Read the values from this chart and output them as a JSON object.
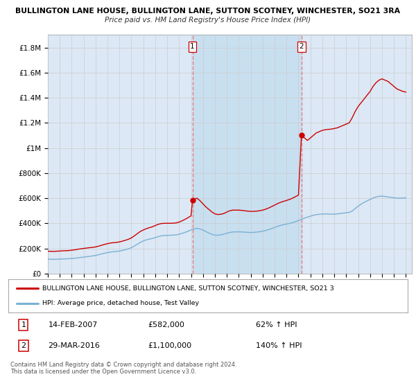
{
  "title_line1": "BULLINGTON LANE HOUSE, BULLINGTON LANE, SUTTON SCOTNEY, WINCHESTER, SO21 3RA",
  "title_line2": "Price paid vs. HM Land Registry's House Price Index (HPI)",
  "xlim_start": 1995.0,
  "xlim_end": 2025.5,
  "ylim_min": 0,
  "ylim_max": 1900000,
  "yticks": [
    0,
    200000,
    400000,
    600000,
    800000,
    1000000,
    1200000,
    1400000,
    1600000,
    1800000
  ],
  "ytick_labels": [
    "£0",
    "£200K",
    "£400K",
    "£600K",
    "£800K",
    "£1M",
    "£1.2M",
    "£1.4M",
    "£1.6M",
    "£1.8M"
  ],
  "xtick_years": [
    1995,
    1996,
    1997,
    1998,
    1999,
    2000,
    2001,
    2002,
    2003,
    2004,
    2005,
    2006,
    2007,
    2008,
    2009,
    2010,
    2011,
    2012,
    2013,
    2014,
    2015,
    2016,
    2017,
    2018,
    2019,
    2020,
    2021,
    2022,
    2023,
    2024,
    2025
  ],
  "red_line_color": "#cc0000",
  "blue_line_color": "#7ab0d4",
  "vline_color": "#e08080",
  "grid_color": "#cccccc",
  "background_color": "#ffffff",
  "plot_bg_color": "#dce8f5",
  "highlight_bg_color": "#c8dff0",
  "sale1_x": 2007.117,
  "sale1_y": 582000,
  "sale2_x": 2016.247,
  "sale2_y": 1100000,
  "legend_red_label": "BULLINGTON LANE HOUSE, BULLINGTON LANE, SUTTON SCOTNEY, WINCHESTER, SO21 3",
  "legend_blue_label": "HPI: Average price, detached house, Test Valley",
  "annotation1_date": "14-FEB-2007",
  "annotation1_price": "£582,000",
  "annotation1_hpi": "62% ↑ HPI",
  "annotation2_date": "29-MAR-2016",
  "annotation2_price": "£1,100,000",
  "annotation2_hpi": "140% ↑ HPI",
  "footer": "Contains HM Land Registry data © Crown copyright and database right 2024.\nThis data is licensed under the Open Government Licence v3.0.",
  "red_hpi_data": [
    [
      1995.0,
      178000
    ],
    [
      1995.25,
      177000
    ],
    [
      1995.5,
      176000
    ],
    [
      1995.75,
      178000
    ],
    [
      1996.0,
      179000
    ],
    [
      1996.25,
      181000
    ],
    [
      1996.5,
      182000
    ],
    [
      1996.75,
      183000
    ],
    [
      1997.0,
      186000
    ],
    [
      1997.25,
      189000
    ],
    [
      1997.5,
      193000
    ],
    [
      1997.75,
      197000
    ],
    [
      1998.0,
      200000
    ],
    [
      1998.25,
      203000
    ],
    [
      1998.5,
      206000
    ],
    [
      1998.75,
      208000
    ],
    [
      1999.0,
      212000
    ],
    [
      1999.25,
      218000
    ],
    [
      1999.5,
      225000
    ],
    [
      1999.75,
      232000
    ],
    [
      2000.0,
      238000
    ],
    [
      2000.25,
      243000
    ],
    [
      2000.5,
      246000
    ],
    [
      2000.75,
      248000
    ],
    [
      2001.0,
      252000
    ],
    [
      2001.25,
      258000
    ],
    [
      2001.5,
      265000
    ],
    [
      2001.75,
      273000
    ],
    [
      2002.0,
      284000
    ],
    [
      2002.25,
      300000
    ],
    [
      2002.5,
      318000
    ],
    [
      2002.75,
      335000
    ],
    [
      2003.0,
      347000
    ],
    [
      2003.25,
      357000
    ],
    [
      2003.5,
      365000
    ],
    [
      2003.75,
      372000
    ],
    [
      2004.0,
      382000
    ],
    [
      2004.25,
      392000
    ],
    [
      2004.5,
      398000
    ],
    [
      2004.75,
      400000
    ],
    [
      2005.0,
      400000
    ],
    [
      2005.25,
      400000
    ],
    [
      2005.5,
      401000
    ],
    [
      2005.75,
      403000
    ],
    [
      2006.0,
      410000
    ],
    [
      2006.25,
      420000
    ],
    [
      2006.5,
      432000
    ],
    [
      2006.75,
      445000
    ],
    [
      2007.0,
      460000
    ],
    [
      2007.117,
      582000
    ],
    [
      2007.25,
      590000
    ],
    [
      2007.5,
      600000
    ],
    [
      2007.75,
      580000
    ],
    [
      2008.0,
      555000
    ],
    [
      2008.25,
      530000
    ],
    [
      2008.5,
      510000
    ],
    [
      2008.75,
      490000
    ],
    [
      2009.0,
      475000
    ],
    [
      2009.25,
      470000
    ],
    [
      2009.5,
      472000
    ],
    [
      2009.75,
      478000
    ],
    [
      2010.0,
      490000
    ],
    [
      2010.25,
      500000
    ],
    [
      2010.5,
      505000
    ],
    [
      2010.75,
      505000
    ],
    [
      2011.0,
      505000
    ],
    [
      2011.25,
      503000
    ],
    [
      2011.5,
      500000
    ],
    [
      2011.75,
      497000
    ],
    [
      2012.0,
      495000
    ],
    [
      2012.25,
      495000
    ],
    [
      2012.5,
      497000
    ],
    [
      2012.75,
      500000
    ],
    [
      2013.0,
      505000
    ],
    [
      2013.25,
      512000
    ],
    [
      2013.5,
      522000
    ],
    [
      2013.75,
      533000
    ],
    [
      2014.0,
      545000
    ],
    [
      2014.25,
      557000
    ],
    [
      2014.5,
      567000
    ],
    [
      2014.75,
      575000
    ],
    [
      2015.0,
      582000
    ],
    [
      2015.25,
      590000
    ],
    [
      2015.5,
      600000
    ],
    [
      2015.75,
      612000
    ],
    [
      2016.0,
      625000
    ],
    [
      2016.247,
      1100000
    ],
    [
      2016.5,
      1080000
    ],
    [
      2016.75,
      1060000
    ],
    [
      2017.0,
      1080000
    ],
    [
      2017.25,
      1100000
    ],
    [
      2017.5,
      1120000
    ],
    [
      2017.75,
      1130000
    ],
    [
      2018.0,
      1140000
    ],
    [
      2018.25,
      1145000
    ],
    [
      2018.5,
      1148000
    ],
    [
      2018.75,
      1150000
    ],
    [
      2019.0,
      1155000
    ],
    [
      2019.25,
      1160000
    ],
    [
      2019.5,
      1170000
    ],
    [
      2019.75,
      1180000
    ],
    [
      2020.0,
      1190000
    ],
    [
      2020.25,
      1200000
    ],
    [
      2020.5,
      1240000
    ],
    [
      2020.75,
      1290000
    ],
    [
      2021.0,
      1330000
    ],
    [
      2021.25,
      1360000
    ],
    [
      2021.5,
      1390000
    ],
    [
      2021.75,
      1420000
    ],
    [
      2022.0,
      1450000
    ],
    [
      2022.25,
      1490000
    ],
    [
      2022.5,
      1520000
    ],
    [
      2022.75,
      1540000
    ],
    [
      2023.0,
      1550000
    ],
    [
      2023.25,
      1540000
    ],
    [
      2023.5,
      1530000
    ],
    [
      2023.75,
      1510000
    ],
    [
      2024.0,
      1490000
    ],
    [
      2024.25,
      1470000
    ],
    [
      2024.5,
      1460000
    ],
    [
      2024.75,
      1450000
    ],
    [
      2025.0,
      1445000
    ]
  ],
  "blue_hpi_data": [
    [
      1995.0,
      115000
    ],
    [
      1995.25,
      114000
    ],
    [
      1995.5,
      113000
    ],
    [
      1995.75,
      114000
    ],
    [
      1996.0,
      115000
    ],
    [
      1996.25,
      116000
    ],
    [
      1996.5,
      117000
    ],
    [
      1996.75,
      118000
    ],
    [
      1997.0,
      120000
    ],
    [
      1997.25,
      122000
    ],
    [
      1997.5,
      125000
    ],
    [
      1997.75,
      128000
    ],
    [
      1998.0,
      131000
    ],
    [
      1998.25,
      134000
    ],
    [
      1998.5,
      137000
    ],
    [
      1998.75,
      140000
    ],
    [
      1999.0,
      144000
    ],
    [
      1999.25,
      150000
    ],
    [
      1999.5,
      156000
    ],
    [
      1999.75,
      162000
    ],
    [
      2000.0,
      167000
    ],
    [
      2000.25,
      171000
    ],
    [
      2000.5,
      174000
    ],
    [
      2000.75,
      176000
    ],
    [
      2001.0,
      179000
    ],
    [
      2001.25,
      184000
    ],
    [
      2001.5,
      190000
    ],
    [
      2001.75,
      197000
    ],
    [
      2002.0,
      206000
    ],
    [
      2002.25,
      219000
    ],
    [
      2002.5,
      234000
    ],
    [
      2002.75,
      248000
    ],
    [
      2003.0,
      260000
    ],
    [
      2003.25,
      268000
    ],
    [
      2003.5,
      274000
    ],
    [
      2003.75,
      279000
    ],
    [
      2004.0,
      286000
    ],
    [
      2004.25,
      294000
    ],
    [
      2004.5,
      300000
    ],
    [
      2004.75,
      303000
    ],
    [
      2005.0,
      304000
    ],
    [
      2005.25,
      305000
    ],
    [
      2005.5,
      306000
    ],
    [
      2005.75,
      308000
    ],
    [
      2006.0,
      313000
    ],
    [
      2006.25,
      320000
    ],
    [
      2006.5,
      328000
    ],
    [
      2006.75,
      337000
    ],
    [
      2007.0,
      347000
    ],
    [
      2007.25,
      355000
    ],
    [
      2007.5,
      360000
    ],
    [
      2007.75,
      355000
    ],
    [
      2008.0,
      346000
    ],
    [
      2008.25,
      334000
    ],
    [
      2008.5,
      322000
    ],
    [
      2008.75,
      312000
    ],
    [
      2009.0,
      306000
    ],
    [
      2009.25,
      305000
    ],
    [
      2009.5,
      308000
    ],
    [
      2009.75,
      314000
    ],
    [
      2010.0,
      321000
    ],
    [
      2010.25,
      327000
    ],
    [
      2010.5,
      331000
    ],
    [
      2010.75,
      332000
    ],
    [
      2011.0,
      332000
    ],
    [
      2011.25,
      331000
    ],
    [
      2011.5,
      330000
    ],
    [
      2011.75,
      328000
    ],
    [
      2012.0,
      327000
    ],
    [
      2012.25,
      328000
    ],
    [
      2012.5,
      330000
    ],
    [
      2012.75,
      333000
    ],
    [
      2013.0,
      337000
    ],
    [
      2013.25,
      343000
    ],
    [
      2013.5,
      350000
    ],
    [
      2013.75,
      358000
    ],
    [
      2014.0,
      367000
    ],
    [
      2014.25,
      376000
    ],
    [
      2014.5,
      383000
    ],
    [
      2014.75,
      389000
    ],
    [
      2015.0,
      394000
    ],
    [
      2015.25,
      399000
    ],
    [
      2015.5,
      405000
    ],
    [
      2015.75,
      413000
    ],
    [
      2016.0,
      422000
    ],
    [
      2016.25,
      432000
    ],
    [
      2016.5,
      441000
    ],
    [
      2016.75,
      449000
    ],
    [
      2017.0,
      457000
    ],
    [
      2017.25,
      464000
    ],
    [
      2017.5,
      469000
    ],
    [
      2017.75,
      472000
    ],
    [
      2018.0,
      474000
    ],
    [
      2018.25,
      475000
    ],
    [
      2018.5,
      474000
    ],
    [
      2018.75,
      473000
    ],
    [
      2019.0,
      473000
    ],
    [
      2019.25,
      475000
    ],
    [
      2019.5,
      478000
    ],
    [
      2019.75,
      481000
    ],
    [
      2020.0,
      484000
    ],
    [
      2020.25,
      487000
    ],
    [
      2020.5,
      498000
    ],
    [
      2020.75,
      517000
    ],
    [
      2021.0,
      536000
    ],
    [
      2021.25,
      553000
    ],
    [
      2021.5,
      567000
    ],
    [
      2021.75,
      578000
    ],
    [
      2022.0,
      590000
    ],
    [
      2022.25,
      601000
    ],
    [
      2022.5,
      610000
    ],
    [
      2022.75,
      615000
    ],
    [
      2023.0,
      616000
    ],
    [
      2023.25,
      614000
    ],
    [
      2023.5,
      610000
    ],
    [
      2023.75,
      606000
    ],
    [
      2024.0,
      603000
    ],
    [
      2024.25,
      601000
    ],
    [
      2024.5,
      600000
    ],
    [
      2024.75,
      601000
    ],
    [
      2025.0,
      603000
    ]
  ]
}
